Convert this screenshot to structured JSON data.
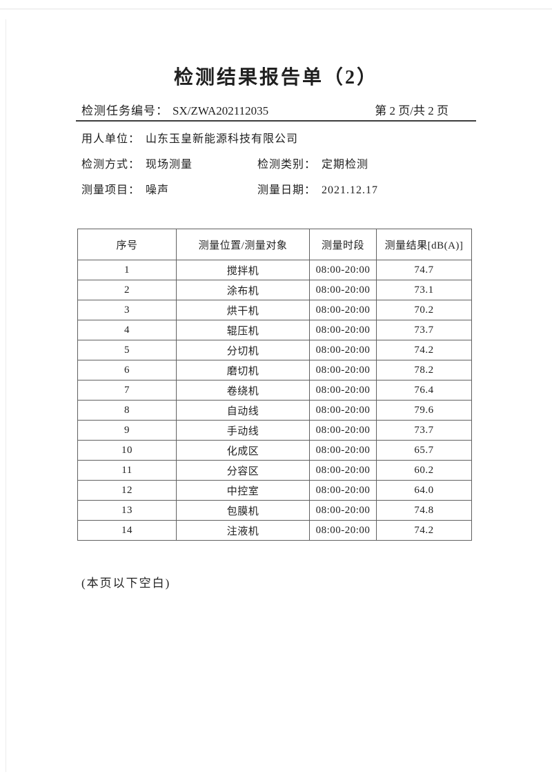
{
  "header": {
    "title": "检测结果报告单（2）",
    "task_label": "检测任务编号：",
    "task_number": "SX/ZWA202112035",
    "page_indicator": "第 2 页/共 2 页"
  },
  "info": {
    "employer_label": "用人单位：",
    "employer_value": "山东玉皇新能源科技有限公司",
    "method_label": "检测方式：",
    "method_value": "现场测量",
    "category_label": "检测类别：",
    "category_value": "定期检测",
    "item_label": "测量项目：",
    "item_value": "噪声",
    "date_label": "测量日期：",
    "date_value": "2021.12.17"
  },
  "table": {
    "headers": [
      "序号",
      "测量位置/测量对象",
      "测量时段",
      "测量结果[dB(A)]"
    ],
    "column_keys": [
      "no",
      "location",
      "period",
      "result"
    ],
    "rows": [
      {
        "no": "1",
        "location": "搅拌机",
        "period": "08:00-20:00",
        "result": "74.7"
      },
      {
        "no": "2",
        "location": "涂布机",
        "period": "08:00-20:00",
        "result": "73.1"
      },
      {
        "no": "3",
        "location": "烘干机",
        "period": "08:00-20:00",
        "result": "70.2"
      },
      {
        "no": "4",
        "location": "辊压机",
        "period": "08:00-20:00",
        "result": "73.7"
      },
      {
        "no": "5",
        "location": "分切机",
        "period": "08:00-20:00",
        "result": "74.2"
      },
      {
        "no": "6",
        "location": "磨切机",
        "period": "08:00-20:00",
        "result": "78.2"
      },
      {
        "no": "7",
        "location": "卷绕机",
        "period": "08:00-20:00",
        "result": "76.4"
      },
      {
        "no": "8",
        "location": "自动线",
        "period": "08:00-20:00",
        "result": "79.6"
      },
      {
        "no": "9",
        "location": "手动线",
        "period": "08:00-20:00",
        "result": "73.7"
      },
      {
        "no": "10",
        "location": "化成区",
        "period": "08:00-20:00",
        "result": "65.7"
      },
      {
        "no": "11",
        "location": "分容区",
        "period": "08:00-20:00",
        "result": "60.2"
      },
      {
        "no": "12",
        "location": "中控室",
        "period": "08:00-20:00",
        "result": "64.0"
      },
      {
        "no": "13",
        "location": "包膜机",
        "period": "08:00-20:00",
        "result": "74.8"
      },
      {
        "no": "14",
        "location": "注液机",
        "period": "08:00-20:00",
        "result": "74.2"
      }
    ]
  },
  "footer": {
    "note": "(本页以下空白)"
  },
  "colors": {
    "text": "#1f1f1f",
    "table_border": "#5f5f5f",
    "rule": "#3c3c3c",
    "background": "#ffffff"
  }
}
